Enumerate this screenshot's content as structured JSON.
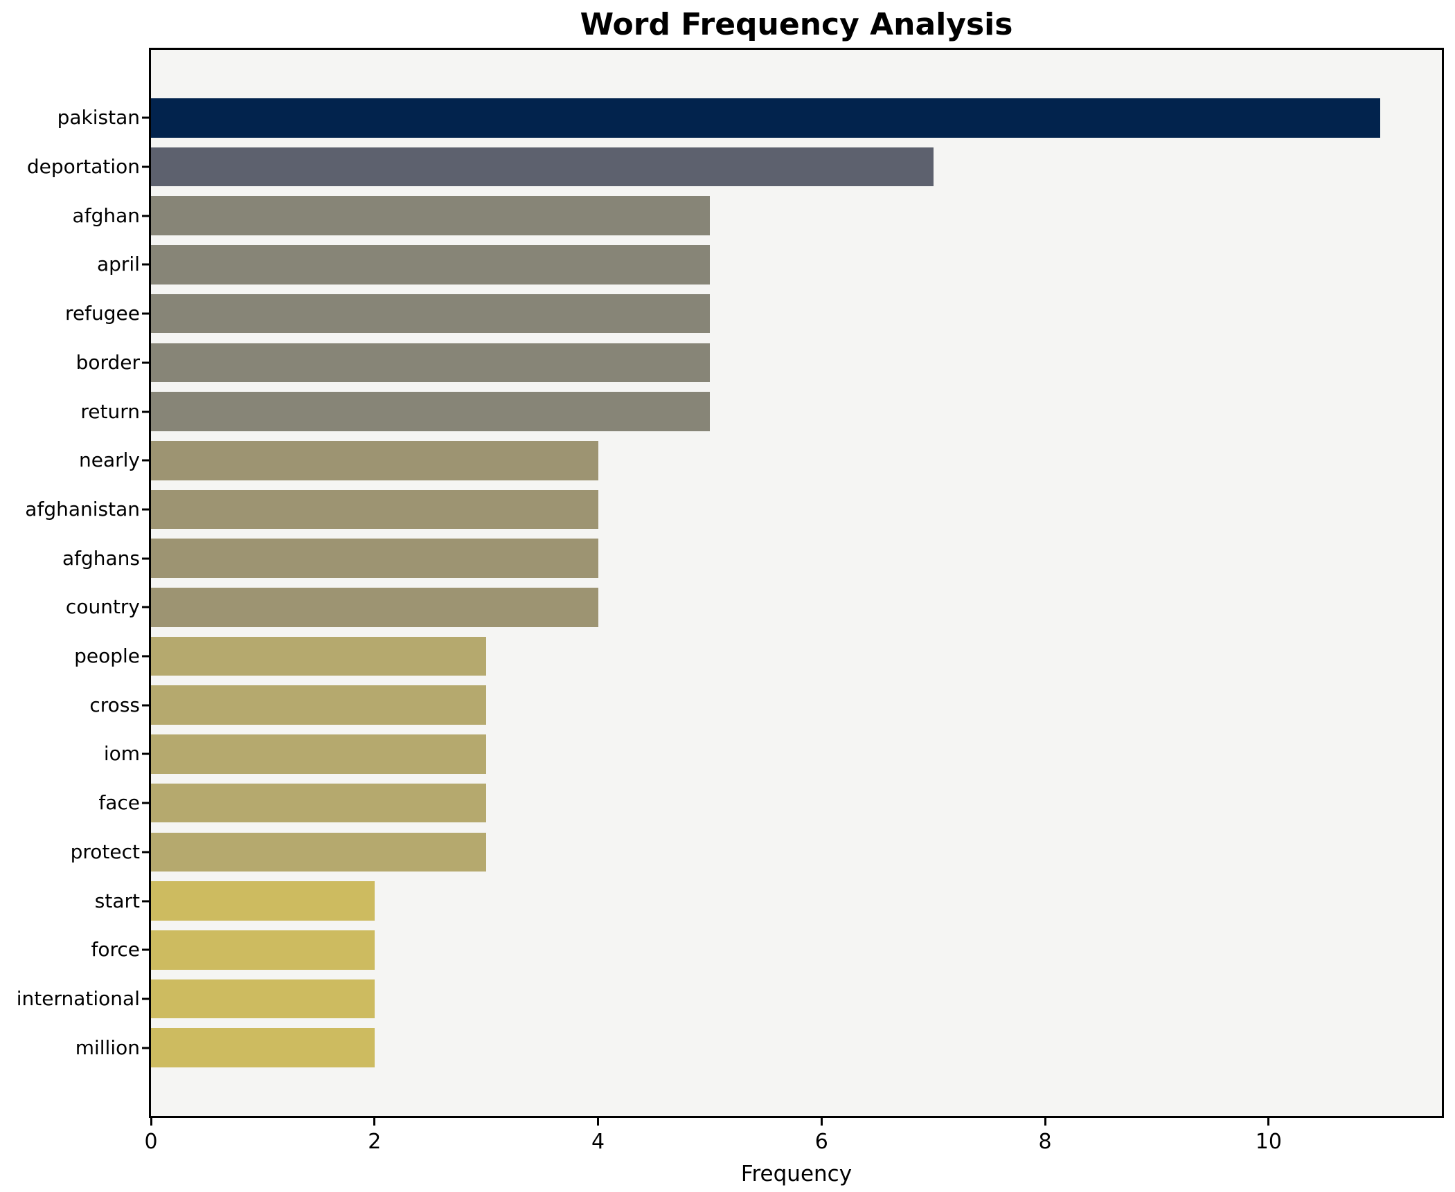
{
  "chart_data": {
    "type": "bar",
    "orientation": "horizontal",
    "title": "Word Frequency Analysis",
    "xlabel": "Frequency",
    "ylabel": "",
    "categories": [
      "pakistan",
      "deportation",
      "afghan",
      "april",
      "refugee",
      "border",
      "return",
      "nearly",
      "afghanistan",
      "afghans",
      "country",
      "people",
      "cross",
      "iom",
      "face",
      "protect",
      "start",
      "force",
      "international",
      "million"
    ],
    "values": [
      11,
      7,
      5,
      5,
      5,
      5,
      5,
      4,
      4,
      4,
      4,
      3,
      3,
      3,
      3,
      3,
      2,
      2,
      2,
      2
    ],
    "bar_colors": [
      "#02234d",
      "#5d616e",
      "#878577",
      "#878577",
      "#878577",
      "#878577",
      "#878577",
      "#9d9472",
      "#9d9472",
      "#9d9472",
      "#9d9472",
      "#b5a96e",
      "#b5a96e",
      "#b5a96e",
      "#b5a96e",
      "#b5a96e",
      "#cdbb60",
      "#cdbb60",
      "#cdbb60",
      "#cdbb60"
    ],
    "xlim": [
      0,
      11.55
    ],
    "x_ticks": [
      0,
      2,
      4,
      6,
      8,
      10
    ],
    "grid": false,
    "legend": false,
    "plot_bg": "#f5f5f3",
    "figure_bg": "#ffffff",
    "colors": {
      "highest_bar": "#02234d",
      "lowest_bar": "#cdbb60",
      "axis": "#000000",
      "text": "#000000"
    }
  }
}
